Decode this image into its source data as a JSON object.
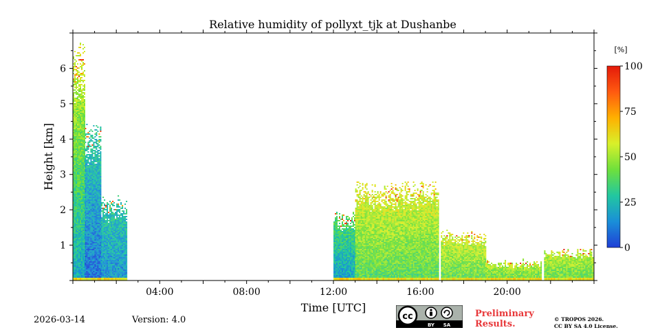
{
  "chart_data": {
    "type": "heatmap",
    "title": "Relative humidity of pollyxt_tjk at Dushanbe",
    "xlabel": "Time [UTC]",
    "ylabel": "Height [km]",
    "x_range_hours": [
      0,
      24
    ],
    "y_range_km": [
      0,
      7
    ],
    "xticks": [
      {
        "value": 4,
        "label": "04:00"
      },
      {
        "value": 8,
        "label": "08:00"
      },
      {
        "value": 12,
        "label": "12:00"
      },
      {
        "value": 16,
        "label": "16:00"
      },
      {
        "value": 20,
        "label": "20:00"
      }
    ],
    "yticks": [
      {
        "value": 1,
        "label": "1"
      },
      {
        "value": 2,
        "label": "2"
      },
      {
        "value": 3,
        "label": "3"
      },
      {
        "value": 4,
        "label": "4"
      },
      {
        "value": 5,
        "label": "5"
      },
      {
        "value": 6,
        "label": "6"
      }
    ],
    "colorbar": {
      "unit": "[%]",
      "range": [
        0,
        100
      ],
      "ticks": [
        {
          "value": 0,
          "label": "0"
        },
        {
          "value": 25,
          "label": "25"
        },
        {
          "value": 50,
          "label": "50"
        },
        {
          "value": 75,
          "label": "75"
        },
        {
          "value": 100,
          "label": "100"
        }
      ],
      "colors": [
        "#1f3fd6",
        "#1a8fd8",
        "#22c7a0",
        "#6ee03c",
        "#d8f02a",
        "#ffb000",
        "#ff5a10",
        "#e41a0a"
      ]
    },
    "segments": [
      {
        "t_start": 0.0,
        "t_end": 0.55,
        "max_height_km": 6.8,
        "rh_low": 20,
        "rh_high": 60
      },
      {
        "t_start": 0.55,
        "t_end": 1.3,
        "max_height_km": 4.5,
        "rh_low": 8,
        "rh_high": 30
      },
      {
        "t_start": 1.3,
        "t_end": 2.45,
        "max_height_km": 2.4,
        "rh_low": 15,
        "rh_high": 30
      },
      {
        "t_start": 12.0,
        "t_end": 13.0,
        "max_height_km": 2.0,
        "rh_low": 18,
        "rh_high": 40
      },
      {
        "t_start": 13.0,
        "t_end": 16.8,
        "max_height_km": 2.8,
        "rh_low": 38,
        "rh_high": 60
      },
      {
        "t_start": 16.95,
        "t_end": 19.0,
        "max_height_km": 1.4,
        "rh_low": 40,
        "rh_high": 58
      },
      {
        "t_start": 19.0,
        "t_end": 21.55,
        "max_height_km": 0.6,
        "rh_low": 40,
        "rh_high": 55
      },
      {
        "t_start": 21.7,
        "t_end": 24.0,
        "max_height_km": 0.9,
        "rh_low": 40,
        "rh_high": 55
      }
    ],
    "gaps": [
      {
        "t_start": 2.45,
        "t_end": 12.0
      },
      {
        "t_start": 16.8,
        "t_end": 16.95
      },
      {
        "t_start": 21.55,
        "t_end": 21.7
      }
    ]
  },
  "footer": {
    "date": "2026-03-14",
    "version": "Version: 4.0",
    "preliminary_line1": "Preliminary",
    "preliminary_line2": "Results.",
    "copyright_line1": "© TROPOS 2026.",
    "copyright_line2": "CC BY SA 4.0 License.",
    "license_icons": [
      "cc-icon",
      "by-icon",
      "sa-icon"
    ],
    "license_text": {
      "by": "BY",
      "sa": "SA",
      "cc": "cc"
    }
  }
}
